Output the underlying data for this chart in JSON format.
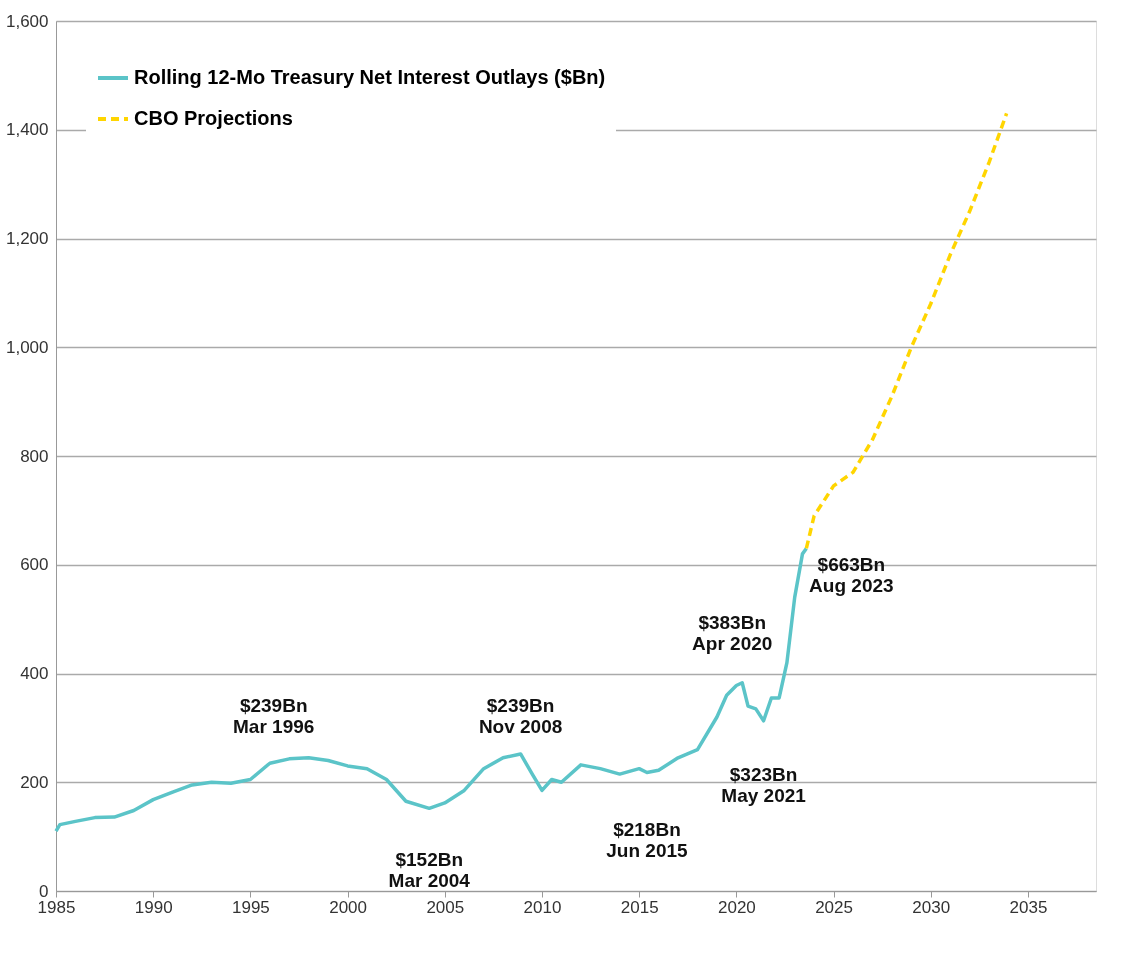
{
  "chart_data": {
    "type": "line",
    "xlim": [
      1985,
      2038.5
    ],
    "xticks": [
      1985,
      1990,
      1995,
      2000,
      2005,
      2010,
      2015,
      2020,
      2025,
      2030,
      2035
    ],
    "ylim": [
      0,
      1600
    ],
    "yticks": [
      0,
      200,
      400,
      600,
      800,
      {
        "value": 1000,
        "label": "1,000"
      },
      {
        "value": 1200,
        "label": "1,200"
      },
      {
        "value": 1400,
        "label": "1,400"
      },
      {
        "value": 1600,
        "label": "1,600"
      }
    ],
    "grid": "y",
    "legend": "top left",
    "marker": "none",
    "series": [
      {
        "name": "Rolling 12-Mo Treasury Net Interest Outlays ($Bn)",
        "color": "#5bc4c8",
        "line_style": "solid",
        "x": [
          1985.0,
          1985.2,
          1986,
          1987,
          1988,
          1989,
          1990,
          1991,
          1992,
          1993,
          1994,
          1995,
          1996,
          1997,
          1998,
          1999,
          2000,
          2001,
          2002,
          2003,
          2004.2,
          2005,
          2006,
          2007,
          2008,
          2008.9,
          2009.5,
          2010,
          2010.5,
          2011,
          2012,
          2013,
          2014,
          2015,
          2015.4,
          2016,
          2017,
          2018,
          2019,
          2019.5,
          2020,
          2020.3,
          2020.6,
          2021,
          2021.4,
          2021.8,
          2022.2,
          2022.6,
          2023,
          2023.4,
          2023.6
        ],
        "values": [
          110,
          122,
          128,
          135,
          136,
          148,
          168,
          182,
          195,
          200,
          198,
          205,
          235,
          243,
          245,
          240,
          230,
          225,
          205,
          165,
          152,
          162,
          185,
          225,
          245,
          252,
          215,
          185,
          205,
          200,
          232,
          225,
          215,
          225,
          218,
          222,
          245,
          260,
          320,
          360,
          378,
          383,
          340,
          335,
          313,
          355,
          355,
          420,
          540,
          620,
          630
        ]
      },
      {
        "name": "CBO Projections",
        "color": "#ffd500",
        "line_style": "dashed",
        "x": [
          2023.6,
          2024,
          2025,
          2026,
          2027,
          2028,
          2029,
          2030,
          2031,
          2032,
          2033,
          2033.9
        ],
        "values": [
          630,
          690,
          745,
          770,
          830,
          910,
          1000,
          1080,
          1170,
          1250,
          1340,
          1430
        ]
      }
    ],
    "annotations": [
      {
        "text": "$239Bn\nMar 1996",
        "x": 1996.2,
        "y": 239
      },
      {
        "text": "$152Bn\nMar 2004",
        "x": 2004.2,
        "y": 152
      },
      {
        "text": "$239Bn\nNov 2008",
        "x": 2008.9,
        "y": 239
      },
      {
        "text": "$218Bn\nJun 2015",
        "x": 2015.4,
        "y": 218
      },
      {
        "text": "$383Bn\nApr 2020",
        "x": 2020.3,
        "y": 383
      },
      {
        "text": "$323Bn\nMay 2021",
        "x": 2021.4,
        "y": 323
      },
      {
        "text": "$663Bn\nAug 2023",
        "x": 2023.6,
        "y": 663
      }
    ]
  }
}
